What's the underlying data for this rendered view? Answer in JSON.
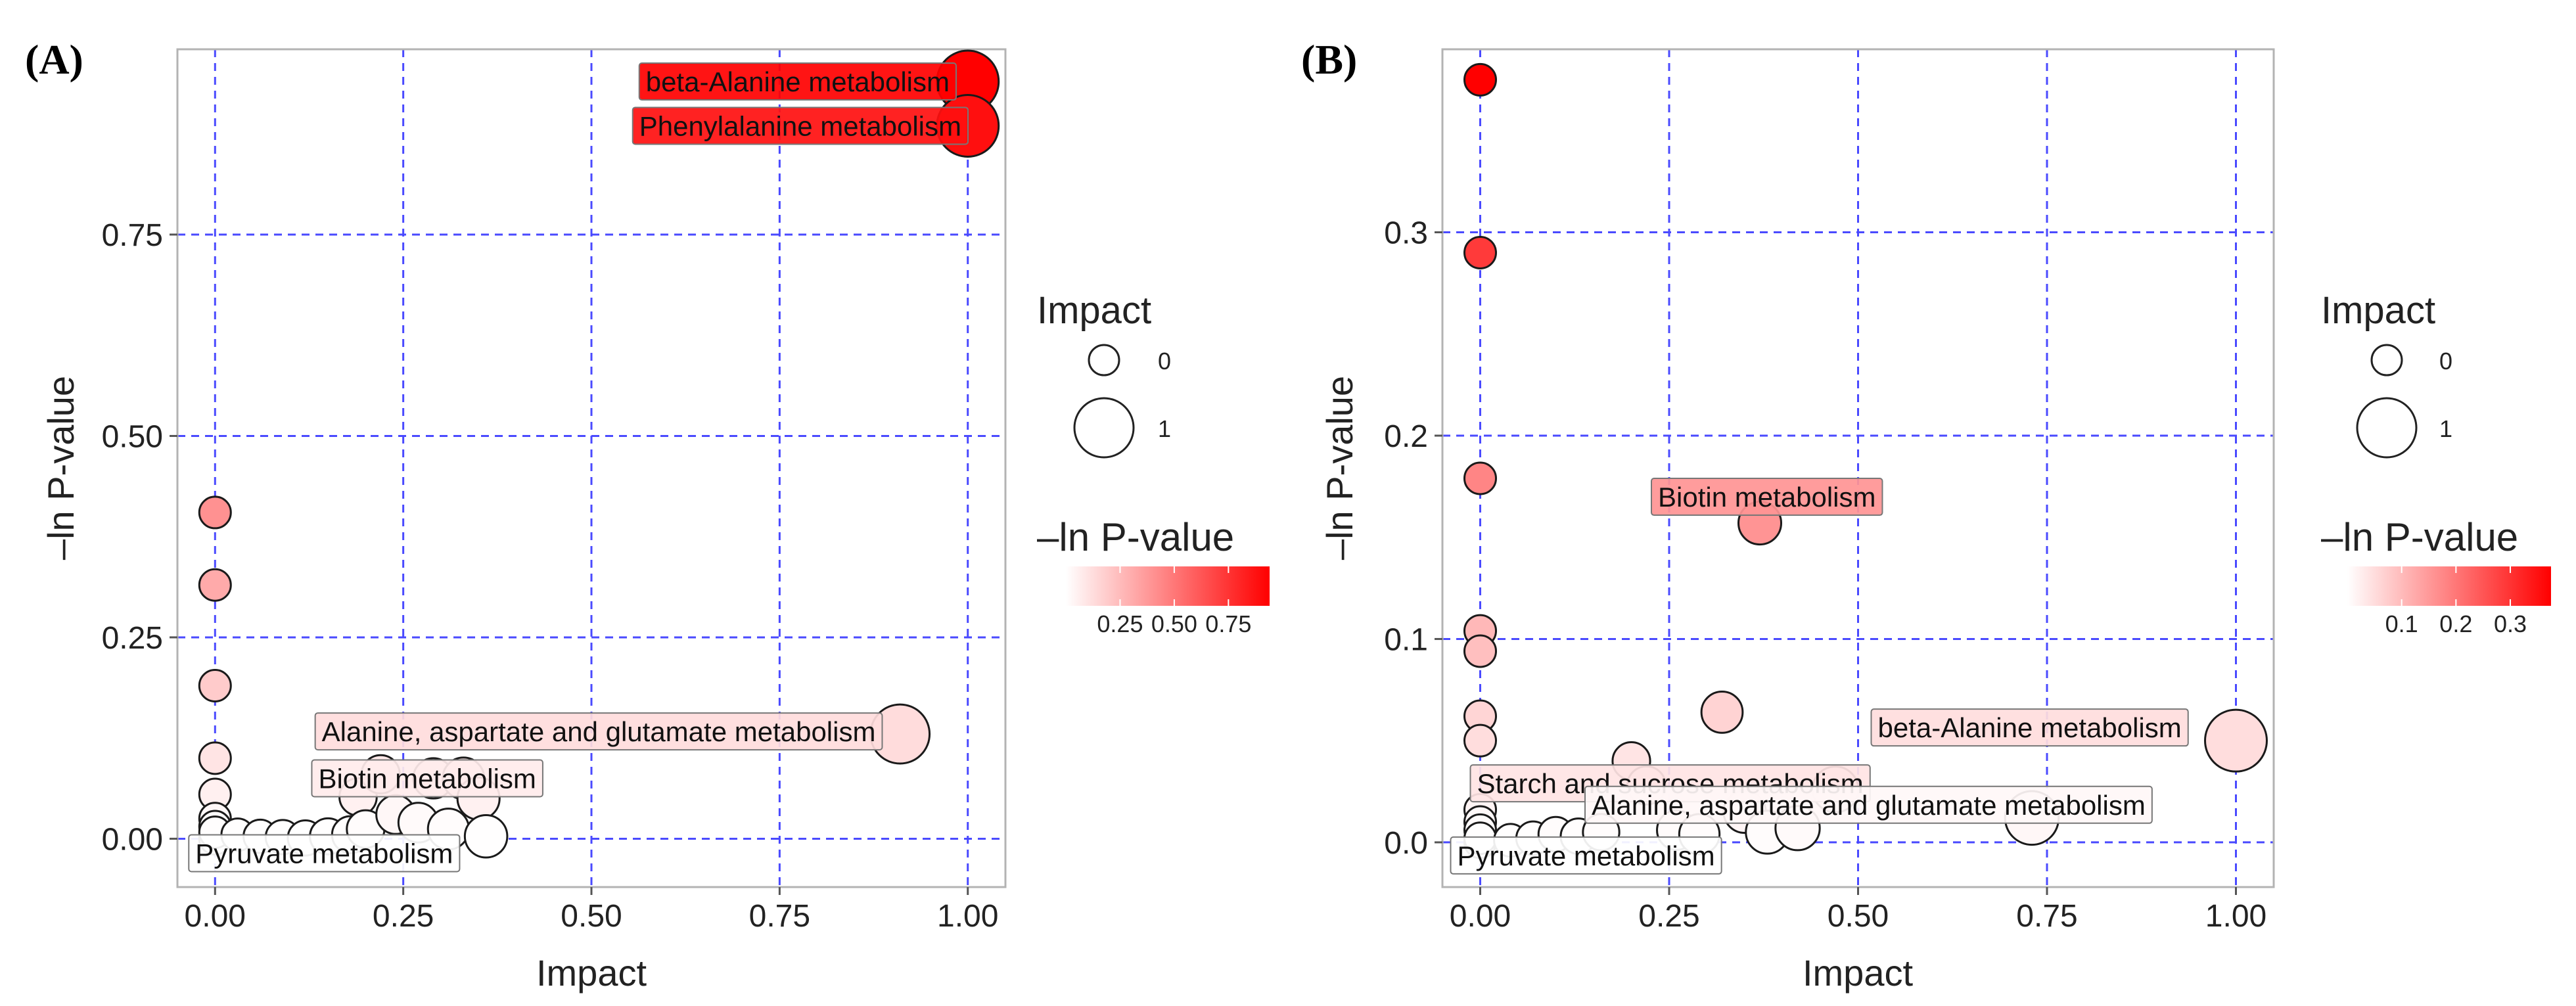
{
  "figure": {
    "bubble_stroke": "#1a1a1a",
    "grid_color": "#4a4aff",
    "scale_low": "#ffffff",
    "scale_high": "#ff0000"
  },
  "chart_data": [
    {
      "panel": "(A)",
      "type": "scatter",
      "xlabel": "Impact",
      "ylabel": "–ln P-value",
      "xlim": [
        -0.05,
        1.05
      ],
      "ylim": [
        -0.06,
        0.98
      ],
      "xticks": [
        0,
        0.25,
        0.5,
        0.75,
        1
      ],
      "xtick_labels": [
        "0.00",
        "0.25",
        "0.50",
        "0.75",
        "1.00"
      ],
      "yticks": [
        0,
        0.25,
        0.5,
        0.75
      ],
      "ytick_labels": [
        "0.00",
        "0.25",
        "0.50",
        "0.75"
      ],
      "grid": true,
      "size_legend": {
        "title": "Impact",
        "entries": [
          {
            "label": "0",
            "value": 0
          },
          {
            "label": "1",
            "value": 1
          }
        ]
      },
      "color_legend": {
        "title": "–ln P-value",
        "range": [
          0,
          0.94
        ],
        "ticks": [
          0.25,
          0.5,
          0.75
        ],
        "tick_labels": [
          "0.25",
          "0.50",
          "0.75"
        ]
      },
      "points": [
        {
          "x": 1.0,
          "y": 0.94,
          "label": "beta-Alanine metabolism"
        },
        {
          "x": 1.0,
          "y": 0.885,
          "label": "Phenylalanine metabolism"
        },
        {
          "x": 0.91,
          "y": 0.13,
          "label": "Alanine, aspartate and glutamate metabolism"
        },
        {
          "x": 0.29,
          "y": 0.075,
          "label": "Biotin metabolism"
        },
        {
          "x": 0.0,
          "y": 0.0,
          "label": "Pyruvate metabolism"
        },
        {
          "x": 0.0,
          "y": 0.405
        },
        {
          "x": 0.0,
          "y": 0.315
        },
        {
          "x": 0.0,
          "y": 0.19
        },
        {
          "x": 0.0,
          "y": 0.1
        },
        {
          "x": 0.0,
          "y": 0.055
        },
        {
          "x": 0.0,
          "y": 0.025
        },
        {
          "x": 0.0,
          "y": 0.015
        },
        {
          "x": 0.0,
          "y": 0.008
        },
        {
          "x": 0.03,
          "y": 0.005
        },
        {
          "x": 0.06,
          "y": 0.003
        },
        {
          "x": 0.09,
          "y": 0.002
        },
        {
          "x": 0.12,
          "y": 0.001
        },
        {
          "x": 0.15,
          "y": 0.003
        },
        {
          "x": 0.18,
          "y": 0.005
        },
        {
          "x": 0.2,
          "y": 0.012
        },
        {
          "x": 0.22,
          "y": 0.08
        },
        {
          "x": 0.19,
          "y": 0.052
        },
        {
          "x": 0.24,
          "y": 0.03
        },
        {
          "x": 0.27,
          "y": 0.02
        },
        {
          "x": 0.33,
          "y": 0.075
        },
        {
          "x": 0.35,
          "y": 0.05
        },
        {
          "x": 0.31,
          "y": 0.012
        },
        {
          "x": 0.36,
          "y": 0.003
        }
      ]
    },
    {
      "panel": "(B)",
      "type": "scatter",
      "xlabel": "Impact",
      "ylabel": "–ln P-value",
      "xlim": [
        -0.05,
        1.05
      ],
      "ylim": [
        -0.022,
        0.39
      ],
      "xticks": [
        0,
        0.25,
        0.5,
        0.75,
        1
      ],
      "xtick_labels": [
        "0.00",
        "0.25",
        "0.50",
        "0.75",
        "1.00"
      ],
      "yticks": [
        0,
        0.1,
        0.2,
        0.3
      ],
      "ytick_labels": [
        "0.0",
        "0.1",
        "0.2",
        "0.3"
      ],
      "grid": true,
      "size_legend": {
        "title": "Impact",
        "entries": [
          {
            "label": "0",
            "value": 0
          },
          {
            "label": "1",
            "value": 1
          }
        ]
      },
      "color_legend": {
        "title": "–ln P-value",
        "range": [
          0,
          0.375
        ],
        "ticks": [
          0.1,
          0.2,
          0.3
        ],
        "tick_labels": [
          "0.1",
          "0.2",
          "0.3"
        ]
      },
      "points": [
        {
          "x": 0.37,
          "y": 0.157,
          "label": "Biotin metabolism"
        },
        {
          "x": 1.0,
          "y": 0.05,
          "label": "beta-Alanine metabolism"
        },
        {
          "x": 0.2,
          "y": 0.04,
          "label": "Starch and sucrose metabolism"
        },
        {
          "x": 0.73,
          "y": 0.012,
          "label": "Alanine, aspartate and glutamate metabolism"
        },
        {
          "x": 0.0,
          "y": 0.0,
          "label": "Pyruvate metabolism"
        },
        {
          "x": 0.0,
          "y": 0.375
        },
        {
          "x": 0.0,
          "y": 0.29
        },
        {
          "x": 0.0,
          "y": 0.179
        },
        {
          "x": 0.0,
          "y": 0.104
        },
        {
          "x": 0.0,
          "y": 0.094
        },
        {
          "x": 0.0,
          "y": 0.062
        },
        {
          "x": 0.0,
          "y": 0.05
        },
        {
          "x": 0.0,
          "y": 0.016
        },
        {
          "x": 0.0,
          "y": 0.01
        },
        {
          "x": 0.0,
          "y": 0.006
        },
        {
          "x": 0.0,
          "y": 0.002
        },
        {
          "x": 0.32,
          "y": 0.064
        },
        {
          "x": 0.47,
          "y": 0.026
        },
        {
          "x": 0.35,
          "y": 0.015
        },
        {
          "x": 0.22,
          "y": 0.028
        },
        {
          "x": 0.04,
          "y": 0.001
        },
        {
          "x": 0.07,
          "y": 0.002
        },
        {
          "x": 0.1,
          "y": 0.004
        },
        {
          "x": 0.13,
          "y": 0.003
        },
        {
          "x": 0.16,
          "y": 0.005
        },
        {
          "x": 0.26,
          "y": 0.006
        },
        {
          "x": 0.29,
          "y": 0.004
        },
        {
          "x": 0.38,
          "y": 0.005
        },
        {
          "x": 0.42,
          "y": 0.007
        }
      ]
    }
  ]
}
